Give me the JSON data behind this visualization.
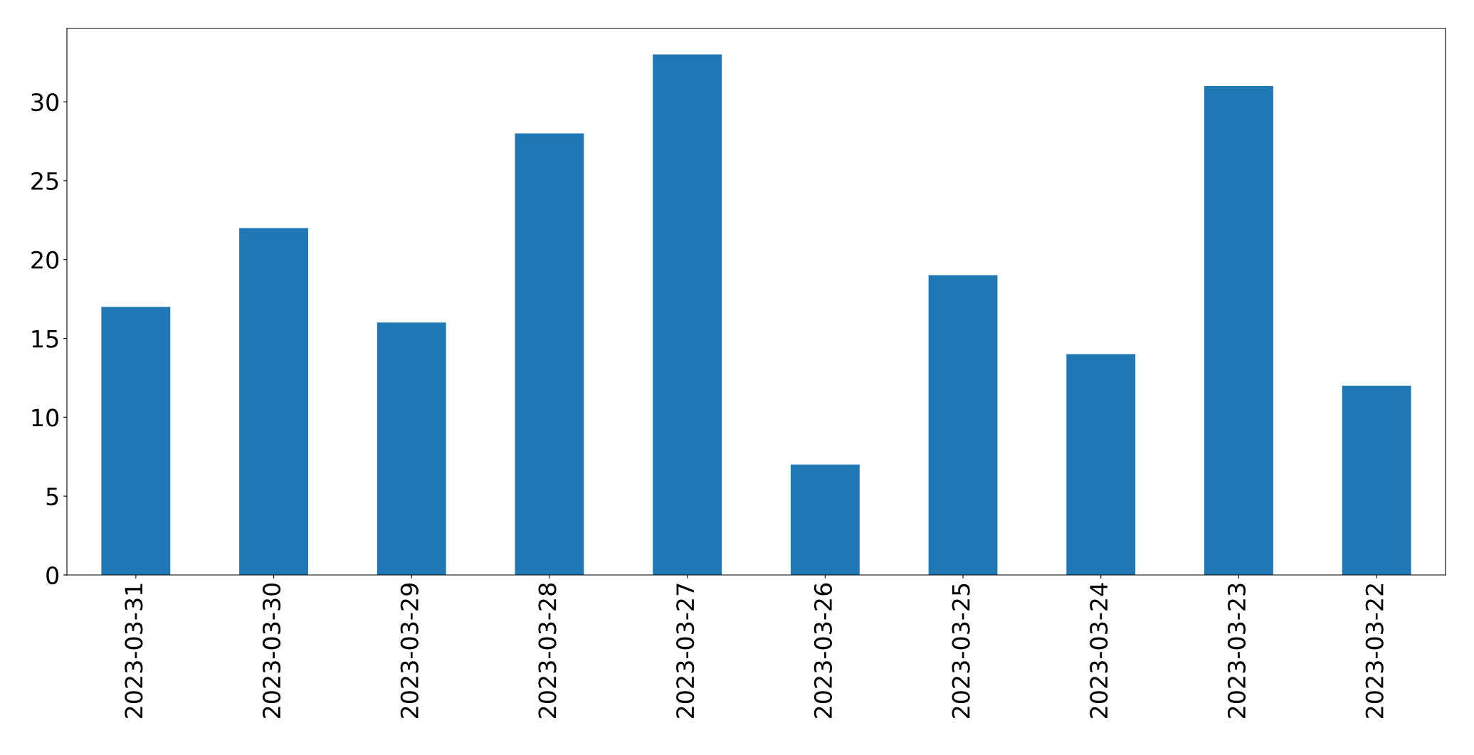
{
  "chart_data": {
    "type": "bar",
    "categories": [
      "2023-03-31",
      "2023-03-30",
      "2023-03-29",
      "2023-03-28",
      "2023-03-27",
      "2023-03-26",
      "2023-03-25",
      "2023-03-24",
      "2023-03-23",
      "2023-03-22"
    ],
    "values": [
      17,
      22,
      16,
      28,
      33,
      7,
      19,
      14,
      31,
      12
    ],
    "color": "#1f77b4",
    "ylim": [
      0,
      34.65
    ],
    "yticks": [
      0,
      5,
      10,
      15,
      20,
      25,
      30
    ],
    "grid": false,
    "legend": false
  }
}
